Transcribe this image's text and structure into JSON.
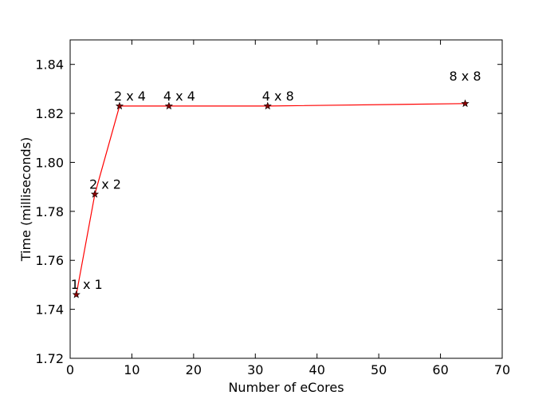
{
  "chart_data": {
    "type": "line",
    "title": "",
    "xlabel": "Number of eCores",
    "ylabel": "Time (milliseconds)",
    "xlim": [
      0,
      70
    ],
    "ylim": [
      1.72,
      1.85
    ],
    "x_ticks": [
      0,
      10,
      20,
      30,
      40,
      50,
      60,
      70
    ],
    "x_tick_labels": [
      "0",
      "10",
      "20",
      "30",
      "40",
      "50",
      "60",
      "70"
    ],
    "y_ticks": [
      1.72,
      1.74,
      1.76,
      1.78,
      1.8,
      1.82,
      1.84
    ],
    "y_tick_labels": [
      "1.72",
      "1.74",
      "1.76",
      "1.78",
      "1.80",
      "1.82",
      "1.84"
    ],
    "grid": false,
    "legend": "none",
    "line_color": "#ff0000",
    "marker": "star",
    "marker_color": "#8b0000",
    "series": [
      {
        "x": [
          1,
          4,
          8,
          16,
          32,
          64
        ],
        "y": [
          1.746,
          1.787,
          1.823,
          1.823,
          1.823,
          1.824
        ],
        "labels": [
          "1 x 1",
          "2 x 2",
          "2 x 4",
          "4 x 4",
          "4 x 8",
          "8 x 8"
        ]
      }
    ]
  }
}
